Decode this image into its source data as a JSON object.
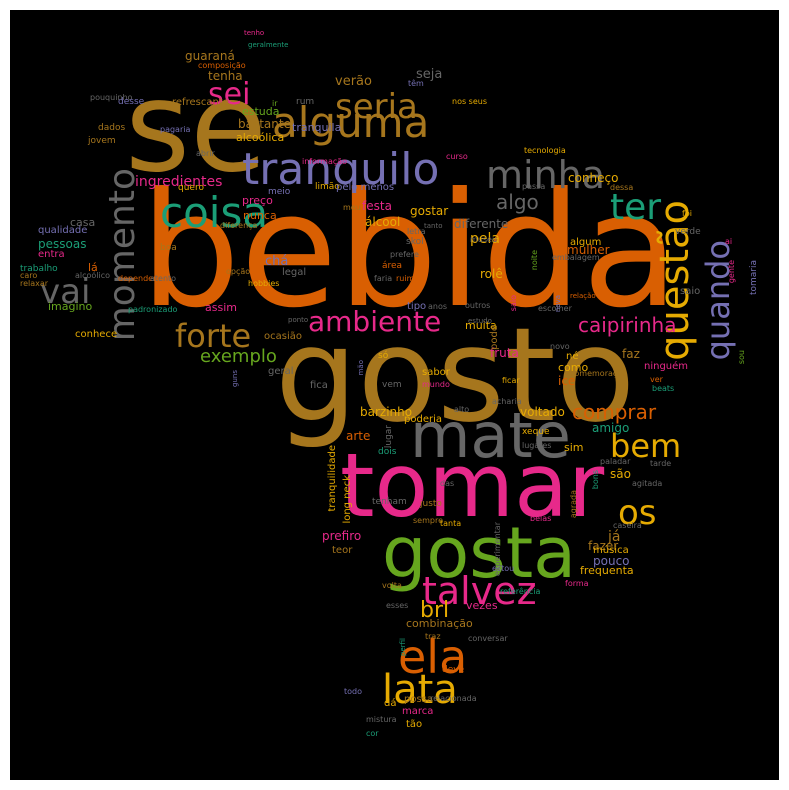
{
  "colors": {
    "orange": "#d95f02",
    "gold": "#a6761d",
    "pink": "#e7298a",
    "green": "#66a61e",
    "yellow": "#e6ab02",
    "purple": "#7570b3",
    "teal": "#1b9e77",
    "gray": "#666666"
  },
  "words": [
    {
      "text": "bebida"
    },
    {
      "text": "gosto"
    },
    {
      "text": "se"
    },
    {
      "text": "tomar"
    },
    {
      "text": "mate"
    },
    {
      "text": "gosta"
    },
    {
      "text": "alguma"
    },
    {
      "text": "tranquilo"
    },
    {
      "text": "coisa"
    },
    {
      "text": "seria"
    },
    {
      "text": "momento"
    },
    {
      "text": "sei"
    },
    {
      "text": "minha"
    },
    {
      "text": "ter"
    },
    {
      "text": "questão"
    },
    {
      "text": "quando"
    },
    {
      "text": "vai"
    },
    {
      "text": "forte"
    },
    {
      "text": "ambiente"
    },
    {
      "text": "caipirinha"
    },
    {
      "text": "ela"
    },
    {
      "text": "lata"
    },
    {
      "text": "talvez"
    },
    {
      "text": "bem"
    },
    {
      "text": "os"
    },
    {
      "text": "exemplo"
    },
    {
      "text": "algo"
    },
    {
      "text": "ingredientes"
    },
    {
      "text": "brl"
    },
    {
      "text": "comprar"
    },
    {
      "text": "seja"
    },
    {
      "text": "verão"
    },
    {
      "text": "guaraná"
    },
    {
      "text": "tenha"
    },
    {
      "text": "refrescante"
    },
    {
      "text": "bastante"
    },
    {
      "text": "alcoólica"
    },
    {
      "text": "tranquila"
    },
    {
      "text": "conheço"
    },
    {
      "text": "gostar"
    },
    {
      "text": "diferente"
    },
    {
      "text": "pela"
    },
    {
      "text": "festa"
    },
    {
      "text": "álcool"
    },
    {
      "text": "chá"
    },
    {
      "text": "preço"
    },
    {
      "text": "nunca"
    },
    {
      "text": "assim"
    },
    {
      "text": "pessoas"
    },
    {
      "text": "casa"
    },
    {
      "text": "qualidade"
    },
    {
      "text": "entra"
    },
    {
      "text": "lá"
    },
    {
      "text": "trabalho"
    },
    {
      "text": "imagino"
    },
    {
      "text": "conhece"
    },
    {
      "text": "mulher"
    },
    {
      "text": "fazer"
    },
    {
      "text": "já"
    },
    {
      "text": "pouco"
    },
    {
      "text": "música"
    },
    {
      "text": "frequenta"
    },
    {
      "text": "são"
    },
    {
      "text": "amigo"
    },
    {
      "text": "sim"
    },
    {
      "text": "voltado"
    },
    {
      "text": "barzinho"
    },
    {
      "text": "arte"
    },
    {
      "text": "poderia"
    },
    {
      "text": "fruta"
    },
    {
      "text": "ice"
    },
    {
      "text": "como"
    },
    {
      "text": "faz"
    },
    {
      "text": "rolê"
    },
    {
      "text": "muita"
    },
    {
      "text": "pode"
    },
    {
      "text": "prefiro"
    },
    {
      "text": "tranquilidade"
    },
    {
      "text": "long neck"
    },
    {
      "text": "teor"
    },
    {
      "text": "vezes"
    },
    {
      "text": "combinação"
    },
    {
      "text": "dá"
    },
    {
      "text": "possa"
    },
    {
      "text": "marca"
    },
    {
      "text": "tão"
    },
    {
      "text": "cor"
    },
    {
      "text": "mistura"
    },
    {
      "text": "todo"
    },
    {
      "text": "deve"
    },
    {
      "text": "relacionada"
    },
    {
      "text": "traz"
    },
    {
      "text": "algum"
    },
    {
      "text": "limão"
    },
    {
      "text": "pelo menos"
    },
    {
      "text": "quero"
    },
    {
      "text": "meio"
    },
    {
      "text": "ocasião"
    },
    {
      "text": "legal"
    },
    {
      "text": "tipo"
    },
    {
      "text": "área"
    },
    {
      "text": "hobbies"
    },
    {
      "text": "geral"
    },
    {
      "text": "fica"
    },
    {
      "text": "vem"
    },
    {
      "text": "só"
    },
    {
      "text": "sabor"
    },
    {
      "text": "né"
    },
    {
      "text": "ninguém"
    },
    {
      "text": "tomaria"
    },
    {
      "text": "saio"
    },
    {
      "text": "verde"
    },
    {
      "text": "foi"
    },
    {
      "text": "gente"
    },
    {
      "text": "sou"
    },
    {
      "text": "tarde"
    },
    {
      "text": "beats"
    },
    {
      "text": "agitada"
    },
    {
      "text": "caseira"
    },
    {
      "text": "belas"
    },
    {
      "text": "sempre"
    },
    {
      "text": "tenham"
    },
    {
      "text": "justo"
    },
    {
      "text": "das"
    },
    {
      "text": "dois"
    },
    {
      "text": "lugar"
    },
    {
      "text": "alto"
    },
    {
      "text": "xeque"
    },
    {
      "text": "lugares"
    },
    {
      "text": "acharia"
    },
    {
      "text": "ficar"
    },
    {
      "text": "mundo"
    },
    {
      "text": "comemoração"
    },
    {
      "text": "ver"
    },
    {
      "text": "novo"
    },
    {
      "text": "escolher"
    },
    {
      "text": "outros"
    },
    {
      "text": "social"
    },
    {
      "text": "saio"
    },
    {
      "text": "forma"
    },
    {
      "text": "estou"
    },
    {
      "text": "referência"
    },
    {
      "text": "esses"
    },
    {
      "text": "volta"
    },
    {
      "text": "bons"
    },
    {
      "text": "agrada"
    },
    {
      "text": "experimentar"
    },
    {
      "text": "tanta"
    },
    {
      "text": "alcoólico"
    },
    {
      "text": "caro"
    },
    {
      "text": "relaxar"
    },
    {
      "text": "dependendo"
    },
    {
      "text": "atento"
    },
    {
      "text": "padronizado"
    },
    {
      "text": "ponto"
    },
    {
      "text": "estudo"
    },
    {
      "text": "anos"
    },
    {
      "text": "faria"
    },
    {
      "text": "ruim"
    },
    {
      "text": "prefere"
    },
    {
      "text": "noite"
    },
    {
      "text": "embalagem"
    },
    {
      "text": "museu"
    },
    {
      "text": "skol"
    },
    {
      "text": "letra"
    },
    {
      "text": "tanto"
    },
    {
      "text": "diferença"
    },
    {
      "text": "opção"
    },
    {
      "text": "boa"
    },
    {
      "text": "meu"
    },
    {
      "text": "curso"
    },
    {
      "text": "passa"
    },
    {
      "text": "dessa"
    },
    {
      "text": "tecnologia"
    },
    {
      "text": "informação"
    },
    {
      "text": "abrir"
    },
    {
      "text": "pagaria"
    },
    {
      "text": "dados"
    },
    {
      "text": "jovem"
    },
    {
      "text": "pouquinho"
    },
    {
      "text": "desse"
    },
    {
      "text": "ir"
    },
    {
      "text": "rum"
    },
    {
      "text": "nos seus"
    },
    {
      "text": "têm"
    },
    {
      "text": "composição"
    },
    {
      "text": "geralmente"
    },
    {
      "text": "tenho"
    },
    {
      "text": "estuda"
    },
    {
      "text": "ai"
    },
    {
      "text": "relação"
    },
    {
      "text": "guns"
    },
    {
      "text": "mão"
    },
    {
      "text": "paladar"
    },
    {
      "text": "conversar"
    },
    {
      "text": "perfil"
    },
    {
      "text": "nova"
    },
    {
      "text": "vida"
    }
  ]
}
